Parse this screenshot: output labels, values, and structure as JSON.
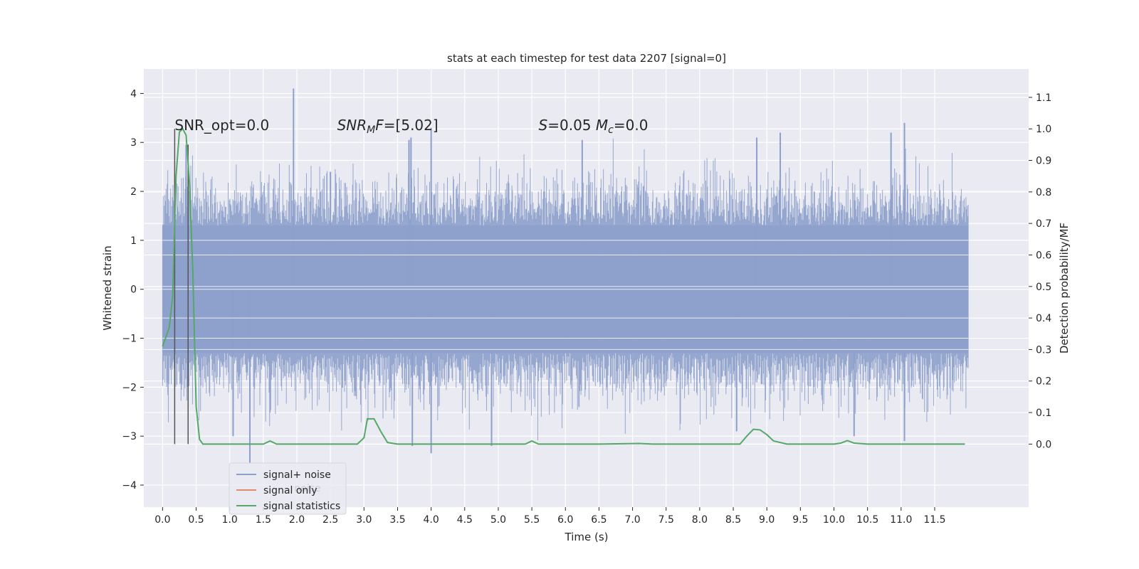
{
  "chart_data": {
    "type": "line",
    "title": "stats at each timestep for test data 2207 [signal=0]",
    "xlabel": "Time (s)",
    "ylabel_left": "Whitened strain",
    "ylabel_right": "Detection probability/MF",
    "xlim": [
      -0.28,
      12.9
    ],
    "ylim_left": [
      -4.45,
      4.5
    ],
    "ylim_right": [
      -0.2,
      1.19
    ],
    "x_ticks": [
      0.0,
      0.5,
      1.0,
      1.5,
      2.0,
      2.5,
      3.0,
      3.5,
      4.0,
      4.5,
      5.0,
      5.5,
      6.0,
      6.5,
      7.0,
      7.5,
      8.0,
      8.5,
      9.0,
      9.5,
      10.0,
      10.5,
      11.0,
      11.5
    ],
    "x_tick_labels": [
      "0.0",
      "0.5",
      "1.0",
      "1.5",
      "2.0",
      "2.5",
      "3.0",
      "3.5",
      "4.0",
      "4.5",
      "5.0",
      "5.5",
      "6.0",
      "6.5",
      "7.0",
      "7.5",
      "8.0",
      "8.5",
      "9.0",
      "9.5",
      "10.0",
      "10.5",
      "11.0",
      "11.5"
    ],
    "y_left_ticks": [
      -4,
      -3,
      -2,
      -1,
      0,
      1,
      2,
      3,
      4
    ],
    "y_left_tick_labels": [
      "−4",
      "−3",
      "−2",
      "−1",
      "0",
      "1",
      "2",
      "3",
      "4"
    ],
    "y_right_ticks": [
      0.0,
      0.1,
      0.2,
      0.3,
      0.4,
      0.5,
      0.6,
      0.7,
      0.8,
      0.9,
      1.0,
      1.1
    ],
    "y_right_tick_labels": [
      "0.0",
      "0.1",
      "0.2",
      "0.3",
      "0.4",
      "0.5",
      "0.6",
      "0.7",
      "0.8",
      "0.9",
      "1.0",
      "1.1"
    ],
    "grid": true,
    "legend_placement": "lower-left",
    "series": [
      {
        "name": "signal+ noise",
        "axis": "left",
        "color": "#8da0cb",
        "kind": "noise-band",
        "x_range": [
          0.0,
          12.0
        ],
        "typical_amplitude": 1.3,
        "peaks": [
          [
            1.95,
            4.1
          ],
          [
            11.05,
            3.4
          ],
          [
            10.85,
            3.2
          ],
          [
            3.7,
            3.1
          ],
          [
            9.2,
            3.2
          ],
          [
            3.67,
            3.05
          ],
          [
            4.0,
            3.3
          ],
          [
            8.85,
            3.1
          ],
          [
            6.25,
            3.05
          ],
          [
            0.35,
            2.95
          ],
          [
            2.5,
            2.4
          ]
        ],
        "troughs": [
          [
            1.3,
            -3.55
          ],
          [
            4.0,
            -3.35
          ],
          [
            4.9,
            -3.2
          ],
          [
            3.72,
            -3.2
          ],
          [
            11.05,
            -3.1
          ],
          [
            1.05,
            -3.0
          ],
          [
            8.55,
            -2.9
          ],
          [
            10.3,
            -3.0
          ]
        ]
      },
      {
        "name": "signal only",
        "axis": "left",
        "color": "#e08b6a",
        "kind": "line",
        "x": [],
        "y": []
      },
      {
        "name": "signal statistics",
        "axis": "right",
        "color": "#55a868",
        "kind": "line",
        "x": [
          0.0,
          0.1,
          0.15,
          0.2,
          0.25,
          0.3,
          0.35,
          0.4,
          0.45,
          0.5,
          0.55,
          0.6,
          0.7,
          1.0,
          1.5,
          1.6,
          1.7,
          2.0,
          2.9,
          3.0,
          3.05,
          3.15,
          3.25,
          3.35,
          3.5,
          4.0,
          4.5,
          5.0,
          5.4,
          5.5,
          5.6,
          5.8,
          6.5,
          7.1,
          7.3,
          8.0,
          8.6,
          8.7,
          8.8,
          8.9,
          9.0,
          9.1,
          9.3,
          10.0,
          10.1,
          10.2,
          10.3,
          10.5,
          11.0,
          11.5,
          11.95
        ],
        "y": [
          0.31,
          0.37,
          0.47,
          0.85,
          0.99,
          1.0,
          0.98,
          0.83,
          0.55,
          0.12,
          0.015,
          0.0,
          0.0,
          0.0,
          0.0,
          0.01,
          0.0,
          0.0,
          0.0,
          0.02,
          0.08,
          0.08,
          0.04,
          0.005,
          0.0,
          0.0,
          0.0,
          0.0,
          0.0,
          0.01,
          0.0,
          0.0,
          0.0,
          0.002,
          0.0,
          0.0,
          0.0,
          0.025,
          0.047,
          0.045,
          0.03,
          0.01,
          0.0,
          0.0,
          0.003,
          0.011,
          0.003,
          0.0,
          0.0,
          0.0,
          0.0
        ]
      }
    ],
    "vertical_lines": [
      {
        "x": 0.18,
        "color": "#555555",
        "y_right_range": [
          0.0,
          1.0
        ]
      },
      {
        "x": 0.38,
        "color": "#555555",
        "y_right_range": [
          0.0,
          0.95
        ]
      }
    ],
    "annotations": [
      {
        "text_parts": [
          {
            "t": "SNR_opt=0.0"
          }
        ],
        "x": 0.18,
        "y_left": 3.25
      },
      {
        "text_parts": [
          {
            "t": "SNR",
            "i": true
          },
          {
            "t": "M",
            "i": true,
            "sub": true
          },
          {
            "t": "F",
            "i": true
          },
          {
            "t": "=[5.02]"
          }
        ],
        "x": 2.6,
        "y_left": 3.25
      },
      {
        "text_parts": [
          {
            "t": "S",
            "i": true
          },
          {
            "t": "=0.05   "
          },
          {
            "t": "M",
            "i": true
          },
          {
            "t": "c",
            "i": true,
            "sub": true
          },
          {
            "t": "=0.0"
          }
        ],
        "x": 5.6,
        "y_left": 3.25
      }
    ],
    "legend_ghost_text": "noise"
  }
}
